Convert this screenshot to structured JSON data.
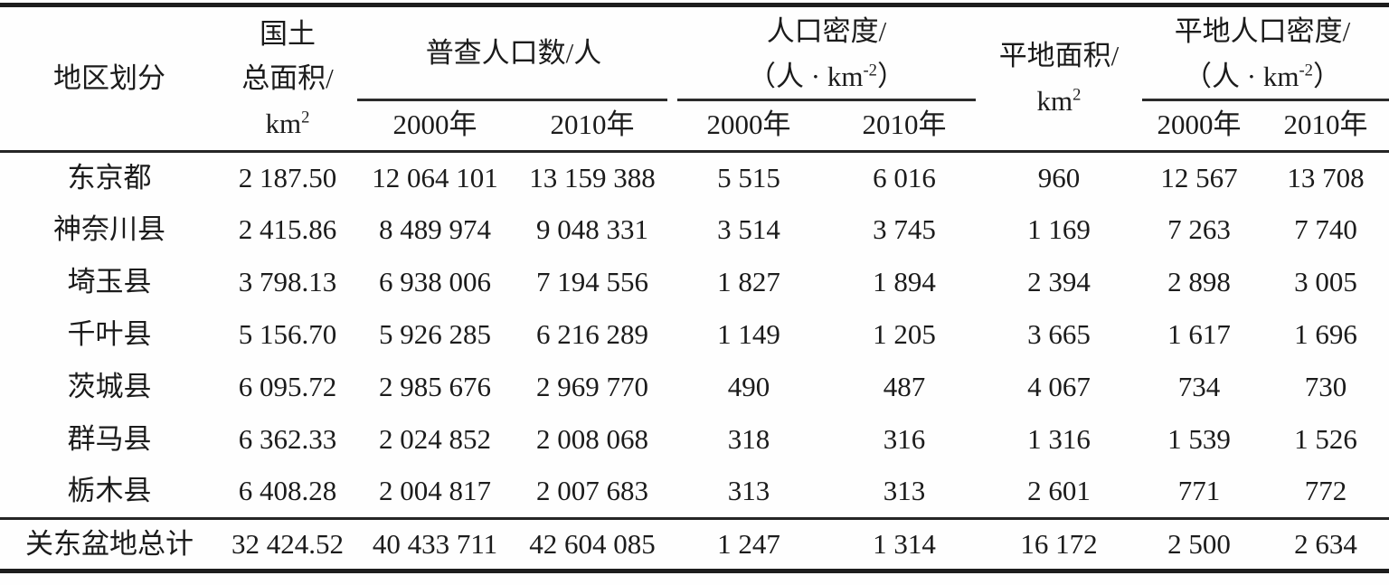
{
  "table": {
    "title_hint": "关东盆地各地区人口普查统计表",
    "header": {
      "region": "地区划分",
      "land_area": {
        "line1": "国土",
        "line2": "总面积/",
        "unit_base": "km",
        "unit_sup": "2"
      },
      "census_pop": "普查人口数/人",
      "pop_density": {
        "line1": "人口密度/",
        "unit_pre": "（人 · km",
        "unit_sup": "-2",
        "unit_post": "）"
      },
      "flat_area": {
        "line1": "平地面积/",
        "unit_base": "km",
        "unit_sup": "2"
      },
      "flat_density": {
        "line1": "平地人口密度/",
        "unit_pre": "（人 · km",
        "unit_sup": "-2",
        "unit_post": "）"
      },
      "years": [
        "2000年",
        "2010年",
        "2000年",
        "2010年",
        "2000年",
        "2010年"
      ]
    },
    "rows": [
      [
        "东京都",
        "2 187.50",
        "12 064 101",
        "13 159 388",
        "5 515",
        "6 016",
        "960",
        "12 567",
        "13 708"
      ],
      [
        "神奈川县",
        "2 415.86",
        "8 489 974",
        "9 048 331",
        "3 514",
        "3 745",
        "1 169",
        "7 263",
        "7 740"
      ],
      [
        "埼玉县",
        "3 798.13",
        "6 938 006",
        "7 194 556",
        "1 827",
        "1 894",
        "2 394",
        "2 898",
        "3 005"
      ],
      [
        "千叶县",
        "5 156.70",
        "5 926 285",
        "6 216 289",
        "1 149",
        "1 205",
        "3 665",
        "1 617",
        "1 696"
      ],
      [
        "茨城县",
        "6 095.72",
        "2 985 676",
        "2 969 770",
        "490",
        "487",
        "4 067",
        "734",
        "730"
      ],
      [
        "群马县",
        "6 362.33",
        "2 024 852",
        "2 008 068",
        "318",
        "316",
        "1 316",
        "1 539",
        "1 526"
      ],
      [
        "栃木县",
        "6 408.28",
        "2 004 817",
        "2 007 683",
        "313",
        "313",
        "2 601",
        "771",
        "772"
      ]
    ],
    "total_row": [
      "关东盆地总计",
      "32 424.52",
      "40 433 711",
      "42 604 085",
      "1 247",
      "1 314",
      "16 172",
      "2 500",
      "2 634"
    ]
  }
}
